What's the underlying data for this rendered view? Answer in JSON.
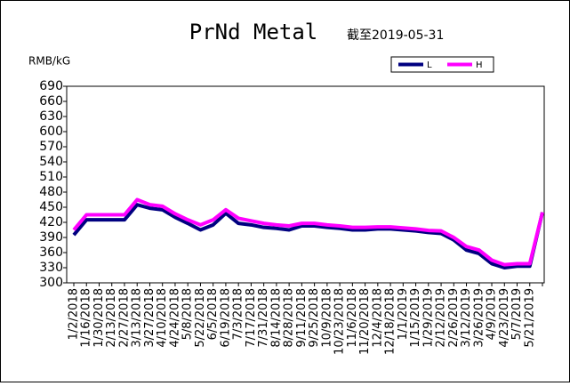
{
  "chart_data": {
    "type": "line",
    "title": "PrNd Metal",
    "subtitle": "截至2019-05-31",
    "y_label": "RMB/kG",
    "categories": [
      "1/2/2018",
      "1/16/2018",
      "1/30/2018",
      "2/13/2018",
      "2/27/2018",
      "3/13/2018",
      "3/27/2018",
      "4/10/2018",
      "4/24/2018",
      "5/8/2018",
      "5/22/2018",
      "6/5/2018",
      "6/19/2018",
      "7/3/2018",
      "7/17/2018",
      "7/31/2018",
      "8/14/2018",
      "8/28/2018",
      "9/11/2018",
      "9/25/2018",
      "10/9/2018",
      "10/23/2018",
      "11/6/2018",
      "11/20/2018",
      "12/4/2018",
      "12/18/2018",
      "1/1/2019",
      "1/15/2019",
      "1/29/2019",
      "2/12/2019",
      "2/26/2019",
      "3/12/2019",
      "3/26/2019",
      "4/9/2019",
      "4/23/2019",
      "5/7/2019",
      "5/21/2019",
      null
    ],
    "series": [
      {
        "name": "L",
        "color": "#000080",
        "values": [
          395,
          425,
          425,
          425,
          425,
          455,
          448,
          445,
          430,
          418,
          405,
          415,
          438,
          418,
          415,
          410,
          408,
          405,
          413,
          413,
          410,
          408,
          405,
          405,
          407,
          407,
          405,
          403,
          400,
          398,
          385,
          365,
          358,
          338,
          330,
          333,
          333,
          440
        ]
      },
      {
        "name": "H",
        "color": "#ff00ff",
        "values": [
          405,
          435,
          435,
          435,
          435,
          465,
          455,
          452,
          437,
          425,
          415,
          425,
          445,
          428,
          423,
          418,
          415,
          413,
          418,
          418,
          415,
          413,
          410,
          410,
          411,
          411,
          409,
          407,
          404,
          403,
          390,
          372,
          365,
          345,
          336,
          338,
          338,
          440
        ]
      }
    ],
    "ylim": [
      300,
      690
    ],
    "yticks": [
      300,
      330,
      360,
      390,
      420,
      450,
      480,
      510,
      540,
      570,
      600,
      630,
      660,
      690
    ],
    "grid": false,
    "legend": "top-right"
  }
}
